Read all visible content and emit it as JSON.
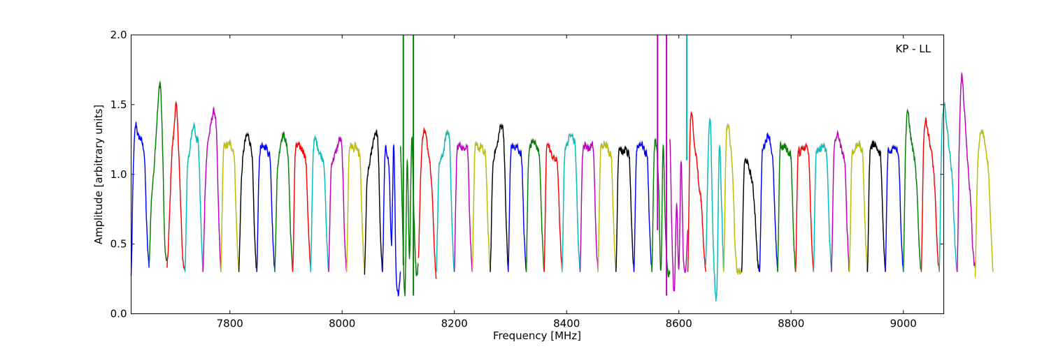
{
  "chart_data": {
    "type": "line",
    "title": "",
    "annotation": "KP - LL",
    "xlabel": "Frequency [MHz]",
    "ylabel": "Amplitude [arbitrary units]",
    "xlim": [
      7624,
      9072
    ],
    "ylim": [
      0.0,
      2.0
    ],
    "xticks": [
      7800,
      8000,
      8200,
      8400,
      8600,
      8800,
      9000
    ],
    "xtick_labels": [
      "7800",
      "8000",
      "8200",
      "8400",
      "8600",
      "8800",
      "9000"
    ],
    "yticks": [
      0.0,
      0.5,
      1.0,
      1.5,
      2.0
    ],
    "ytick_labels": [
      "0.0",
      "0.5",
      "1.0",
      "1.5",
      "2.0"
    ],
    "grid": false,
    "legend": "none",
    "channel_start": 7624,
    "channel_width": 32,
    "channel_colors": [
      "#0000ff",
      "#008000",
      "#ff0000",
      "#00bfbf",
      "#bf00bf",
      "#bfbf00",
      "#000000"
    ],
    "shadow_color": "#c0c0c0",
    "series": [
      {
        "color": "#0000ff",
        "values": [
          0.27,
          1.05,
          1.35,
          1.28,
          1.26,
          1.22,
          1.1,
          0.6,
          0.33
        ]
      },
      {
        "color": "#008000",
        "values": [
          0.35,
          0.8,
          1.0,
          1.25,
          1.5,
          1.65,
          1.2,
          0.5,
          0.38
        ]
      },
      {
        "color": "#ff0000",
        "values": [
          0.33,
          0.65,
          1.1,
          1.3,
          1.5,
          1.25,
          0.8,
          0.4,
          0.32
        ]
      },
      {
        "color": "#00bfbf",
        "values": [
          0.3,
          1.0,
          1.15,
          1.3,
          1.35,
          1.25,
          1.2,
          0.7,
          0.3
        ]
      },
      {
        "color": "#bf00bf",
        "values": [
          0.3,
          0.9,
          1.2,
          1.3,
          1.4,
          1.45,
          1.3,
          0.7,
          0.3
        ]
      },
      {
        "color": "#bfbf00",
        "values": [
          0.3,
          1.1,
          1.2,
          1.2,
          1.22,
          1.18,
          1.1,
          0.6,
          0.3
        ]
      },
      {
        "color": "#000000",
        "values": [
          0.3,
          0.9,
          1.15,
          1.25,
          1.28,
          1.22,
          1.1,
          0.55,
          0.3
        ]
      },
      {
        "color": "#0000ff",
        "values": [
          0.3,
          1.05,
          1.2,
          1.18,
          1.2,
          1.15,
          1.1,
          0.6,
          0.3
        ]
      },
      {
        "color": "#008000",
        "values": [
          0.3,
          0.95,
          1.15,
          1.25,
          1.28,
          1.22,
          1.1,
          0.6,
          0.3
        ]
      },
      {
        "color": "#ff0000",
        "values": [
          0.3,
          1.1,
          1.2,
          1.2,
          1.18,
          1.15,
          1.05,
          0.6,
          0.3
        ]
      },
      {
        "color": "#00bfbf",
        "values": [
          0.3,
          1.1,
          1.25,
          1.2,
          1.15,
          1.12,
          1.05,
          0.6,
          0.3
        ]
      },
      {
        "color": "#bf00bf",
        "values": [
          0.3,
          1.0,
          1.1,
          1.15,
          1.2,
          1.25,
          1.15,
          0.6,
          0.3
        ]
      },
      {
        "color": "#bfbf00",
        "values": [
          0.3,
          1.1,
          1.2,
          1.18,
          1.2,
          1.15,
          1.1,
          0.6,
          0.3
        ]
      },
      {
        "color": "#000000",
        "values": [
          0.28,
          0.9,
          1.05,
          1.15,
          1.25,
          1.3,
          1.2,
          0.6,
          0.3
        ]
      },
      {
        "color": "#0000ff",
        "values": [
          0.3,
          1.1,
          1.15,
          1.0,
          0.5,
          1.2,
          0.3,
          0.15,
          0.3
        ]
      },
      {
        "color": "#008000",
        "values": [
          1.2,
          0.6,
          0.15,
          1.1,
          0.4,
          1.25,
          0.7,
          0.3,
          0.35
        ]
      },
      {
        "color": "#ff0000",
        "values": [
          0.4,
          1.0,
          1.28,
          1.3,
          1.2,
          1.1,
          0.9,
          0.5,
          0.25
        ]
      },
      {
        "color": "#00bfbf",
        "values": [
          0.3,
          1.0,
          1.1,
          1.15,
          1.25,
          1.3,
          1.2,
          0.6,
          0.3
        ]
      },
      {
        "color": "#bf00bf",
        "values": [
          0.3,
          1.1,
          1.2,
          1.2,
          1.18,
          1.2,
          1.15,
          0.6,
          0.3
        ]
      },
      {
        "color": "#bfbf00",
        "values": [
          0.3,
          1.1,
          1.2,
          1.18,
          1.2,
          1.15,
          1.1,
          0.6,
          0.3
        ]
      },
      {
        "color": "#000000",
        "values": [
          0.3,
          1.0,
          1.15,
          1.2,
          1.3,
          1.35,
          1.25,
          0.7,
          0.3
        ]
      },
      {
        "color": "#0000ff",
        "values": [
          0.3,
          1.1,
          1.2,
          1.18,
          1.2,
          1.15,
          1.1,
          0.6,
          0.3
        ]
      },
      {
        "color": "#008000",
        "values": [
          0.3,
          1.1,
          1.2,
          1.25,
          1.22,
          1.18,
          1.1,
          0.6,
          0.3
        ]
      },
      {
        "color": "#ff0000",
        "values": [
          0.3,
          1.15,
          1.2,
          1.15,
          1.12,
          1.1,
          1.05,
          0.6,
          0.3
        ]
      },
      {
        "color": "#00bfbf",
        "values": [
          0.3,
          1.1,
          1.2,
          1.25,
          1.3,
          1.25,
          1.15,
          0.6,
          0.3
        ]
      },
      {
        "color": "#bf00bf",
        "values": [
          0.3,
          1.1,
          1.2,
          1.2,
          1.18,
          1.2,
          1.15,
          0.6,
          0.3
        ]
      },
      {
        "color": "#bfbf00",
        "values": [
          0.3,
          1.1,
          1.2,
          1.22,
          1.2,
          1.15,
          1.1,
          0.6,
          0.3
        ]
      },
      {
        "color": "#000000",
        "values": [
          0.3,
          1.1,
          1.18,
          1.15,
          1.18,
          1.15,
          1.1,
          0.6,
          0.3
        ]
      },
      {
        "color": "#0000ff",
        "values": [
          0.3,
          1.1,
          1.2,
          1.22,
          1.2,
          1.15,
          1.1,
          0.6,
          0.3
        ]
      },
      {
        "color": "#008000",
        "values": [
          0.3,
          1.15,
          1.2,
          0.9,
          0.3,
          1.2,
          0.6,
          0.3,
          0.3
        ]
      },
      {
        "color": "#bf00bf",
        "values": [
          1.25,
          0.5,
          0.15,
          0.8,
          0.3,
          1.1,
          0.4,
          0.3,
          0.6
        ]
      },
      {
        "color": "#ff0000",
        "values": [
          0.3,
          1.3,
          1.4,
          1.2,
          1.1,
          0.9,
          0.8,
          0.5,
          0.3
        ]
      },
      {
        "color": "#00bfbf",
        "values": [
          0.35,
          1.1,
          1.4,
          0.7,
          0.2,
          0.2,
          1.2,
          0.8,
          0.3
        ]
      },
      {
        "color": "#bfbf00",
        "values": [
          0.3,
          1.2,
          1.35,
          1.2,
          1.0,
          0.5,
          0.3,
          0.3,
          0.3
        ]
      },
      {
        "color": "#000000",
        "values": [
          0.3,
          1.0,
          1.1,
          1.05,
          1.0,
          0.9,
          0.7,
          0.4,
          0.3
        ]
      },
      {
        "color": "#0000ff",
        "values": [
          0.3,
          1.1,
          1.2,
          1.25,
          1.28,
          1.2,
          1.05,
          0.6,
          0.3
        ]
      },
      {
        "color": "#008000",
        "values": [
          0.3,
          1.15,
          1.18,
          1.2,
          1.18,
          1.15,
          1.1,
          0.6,
          0.3
        ]
      },
      {
        "color": "#ff0000",
        "values": [
          0.3,
          1.1,
          1.15,
          1.2,
          1.18,
          1.2,
          1.1,
          0.6,
          0.3
        ]
      },
      {
        "color": "#00bfbf",
        "values": [
          0.3,
          1.1,
          1.15,
          1.18,
          1.2,
          1.18,
          1.1,
          0.6,
          0.3
        ]
      },
      {
        "color": "#bf00bf",
        "values": [
          0.3,
          1.1,
          1.25,
          1.28,
          1.2,
          1.15,
          1.05,
          0.6,
          0.3
        ]
      },
      {
        "color": "#bfbf00",
        "values": [
          0.3,
          1.1,
          1.15,
          1.2,
          1.22,
          1.18,
          1.1,
          0.6,
          0.3
        ]
      },
      {
        "color": "#000000",
        "values": [
          0.3,
          1.1,
          1.2,
          1.22,
          1.2,
          1.15,
          1.1,
          0.6,
          0.3
        ]
      },
      {
        "color": "#0000ff",
        "values": [
          0.3,
          1.1,
          1.15,
          1.18,
          1.2,
          1.18,
          1.1,
          0.6,
          0.3
        ]
      },
      {
        "color": "#008000",
        "values": [
          0.3,
          1.2,
          1.45,
          1.3,
          1.2,
          1.1,
          0.9,
          0.5,
          0.3
        ]
      },
      {
        "color": "#ff0000",
        "values": [
          0.3,
          1.2,
          1.38,
          1.3,
          1.2,
          1.1,
          0.9,
          0.5,
          0.3
        ]
      },
      {
        "color": "#00bfbf",
        "values": [
          0.3,
          1.2,
          1.5,
          1.4,
          1.25,
          1.1,
          0.9,
          0.5,
          0.3
        ]
      },
      {
        "color": "#bf00bf",
        "values": [
          0.3,
          1.3,
          1.7,
          1.5,
          1.25,
          1.0,
          0.8,
          0.45,
          0.33
        ]
      },
      {
        "color": "#bfbf00",
        "values": [
          0.26,
          1.0,
          1.25,
          1.3,
          1.25,
          1.15,
          1.0,
          0.6,
          0.3
        ]
      }
    ],
    "spikes": [
      {
        "x": 8109,
        "y": [
          2.0,
          0.35
        ],
        "color": "#008000"
      },
      {
        "x": 8127,
        "y": [
          0.13,
          2.0
        ],
        "color": "#008000"
      },
      {
        "x": 8562,
        "y": [
          0.6,
          2.0
        ],
        "color": "#bf00bf"
      },
      {
        "x": 8578,
        "y": [
          0.13,
          2.0
        ],
        "color": "#bf00bf"
      },
      {
        "x": 8614,
        "y": [
          1.1,
          2.0
        ],
        "color": "#00bfbf"
      }
    ]
  }
}
